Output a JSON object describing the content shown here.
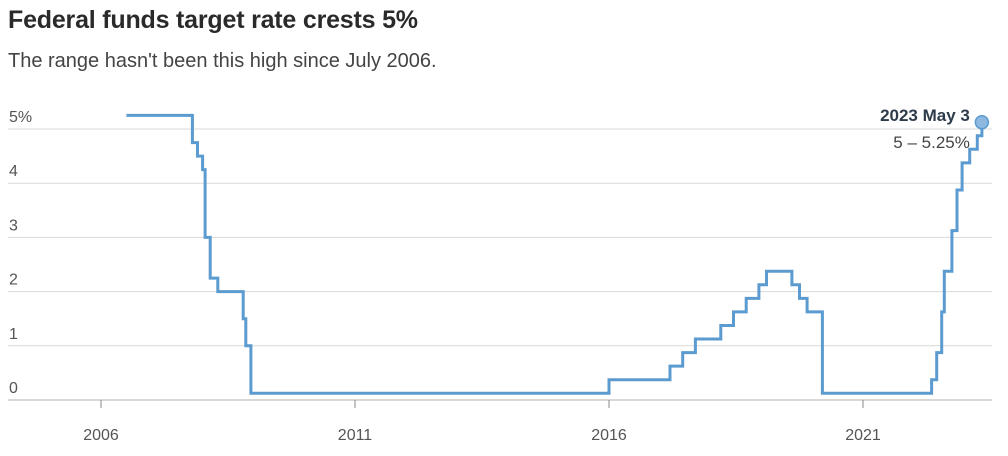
{
  "title": "Federal funds target rate crests 5%",
  "subtitle": "The range hasn't been this high since July 2006.",
  "annotation": {
    "date": "2023 May 3",
    "range": "5 – 5.25%"
  },
  "colors": {
    "line": "#5b9bd0",
    "grid": "#d9d9d9",
    "baseline": "#b0b0b0",
    "marker": "#8db8e0"
  },
  "chart_data": {
    "type": "line",
    "title": "Federal funds target rate crests 5%",
    "subtitle": "The range hasn't been this high since July 2006.",
    "xlabel": "",
    "ylabel": "",
    "xlim": [
      2004.5,
      2023.8
    ],
    "ylim": [
      0,
      5.3
    ],
    "x_ticks": [
      {
        "value": 2006,
        "label": "2006"
      },
      {
        "value": 2011,
        "label": "2011"
      },
      {
        "value": 2016,
        "label": "2016"
      },
      {
        "value": 2021,
        "label": "2021"
      }
    ],
    "y_ticks": [
      {
        "value": 0,
        "label": "0"
      },
      {
        "value": 1,
        "label": "1"
      },
      {
        "value": 2,
        "label": "2"
      },
      {
        "value": 3,
        "label": "3"
      },
      {
        "value": 4,
        "label": "4"
      },
      {
        "value": 5,
        "label": "5%"
      }
    ],
    "grid": "horizontal",
    "step": true,
    "series": [
      {
        "points": [
          [
            2006.5,
            5.25
          ],
          [
            2007.7,
            5.25
          ],
          [
            2007.8,
            4.75
          ],
          [
            2007.9,
            4.5
          ],
          [
            2008.0,
            4.25
          ],
          [
            2008.05,
            3.0
          ],
          [
            2008.15,
            2.25
          ],
          [
            2008.3,
            2.0
          ],
          [
            2008.75,
            2.0
          ],
          [
            2008.8,
            1.5
          ],
          [
            2008.85,
            1.0
          ],
          [
            2008.95,
            0.125
          ],
          [
            2015.95,
            0.125
          ],
          [
            2016.0,
            0.375
          ],
          [
            2016.95,
            0.375
          ],
          [
            2017.2,
            0.625
          ],
          [
            2017.45,
            0.875
          ],
          [
            2017.7,
            1.125
          ],
          [
            2018.2,
            1.375
          ],
          [
            2018.45,
            1.625
          ],
          [
            2018.7,
            1.875
          ],
          [
            2018.95,
            2.125
          ],
          [
            2019.1,
            2.375
          ],
          [
            2019.55,
            2.375
          ],
          [
            2019.6,
            2.125
          ],
          [
            2019.75,
            1.875
          ],
          [
            2019.9,
            1.625
          ],
          [
            2020.15,
            1.625
          ],
          [
            2020.2,
            0.125
          ],
          [
            2022.2,
            0.125
          ],
          [
            2022.35,
            0.375
          ],
          [
            2022.45,
            0.875
          ],
          [
            2022.55,
            1.625
          ],
          [
            2022.6,
            2.375
          ],
          [
            2022.75,
            3.125
          ],
          [
            2022.85,
            3.875
          ],
          [
            2022.95,
            4.375
          ],
          [
            2023.1,
            4.625
          ],
          [
            2023.25,
            4.875
          ],
          [
            2023.34,
            5.125
          ]
        ]
      }
    ],
    "highlight_point": {
      "x": 2023.34,
      "y": 5.125,
      "label": "2023 May 3",
      "value_label": "5 – 5.25%"
    }
  }
}
